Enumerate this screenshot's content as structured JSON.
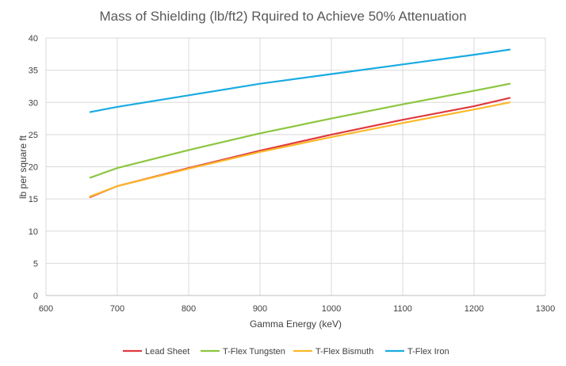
{
  "chart_data": {
    "type": "line",
    "title": "Mass of Shielding (lb/ft2) Rquired to Achieve 50% Attenuation",
    "xlabel": "Gamma Energy (keV)",
    "ylabel": "lb per square ft",
    "xlim": [
      600,
      1300
    ],
    "ylim": [
      0,
      40
    ],
    "x_ticks": [
      600,
      700,
      800,
      900,
      1000,
      1100,
      1200,
      1300
    ],
    "y_ticks": [
      0,
      5,
      10,
      15,
      20,
      25,
      30,
      35,
      40
    ],
    "grid": true,
    "legend_position": "bottom",
    "series": [
      {
        "name": "Lead Sheet",
        "color": "#e0393e",
        "points": [
          [
            662,
            15.3
          ],
          [
            700,
            17.0
          ],
          [
            800,
            19.8
          ],
          [
            900,
            22.5
          ],
          [
            1000,
            25.0
          ],
          [
            1100,
            27.3
          ],
          [
            1200,
            29.4
          ],
          [
            1250,
            30.7
          ]
        ]
      },
      {
        "name": "T-Flex Tungsten",
        "color": "#8cc63f",
        "points": [
          [
            662,
            18.3
          ],
          [
            700,
            19.8
          ],
          [
            800,
            22.6
          ],
          [
            900,
            25.2
          ],
          [
            1000,
            27.5
          ],
          [
            1100,
            29.7
          ],
          [
            1200,
            31.8
          ],
          [
            1250,
            32.9
          ]
        ]
      },
      {
        "name": "T-Flex Bismuth",
        "color": "#fbb829",
        "points": [
          [
            662,
            15.4
          ],
          [
            700,
            17.0
          ],
          [
            800,
            19.7
          ],
          [
            900,
            22.3
          ],
          [
            1000,
            24.6
          ],
          [
            1100,
            26.8
          ],
          [
            1200,
            28.9
          ],
          [
            1250,
            30.0
          ]
        ]
      },
      {
        "name": "T-Flex Iron",
        "color": "#1aabe2",
        "points": [
          [
            662,
            28.5
          ],
          [
            700,
            29.3
          ],
          [
            800,
            31.1
          ],
          [
            900,
            32.9
          ],
          [
            1000,
            34.4
          ],
          [
            1100,
            35.9
          ],
          [
            1200,
            37.4
          ],
          [
            1250,
            38.2
          ]
        ]
      }
    ]
  }
}
